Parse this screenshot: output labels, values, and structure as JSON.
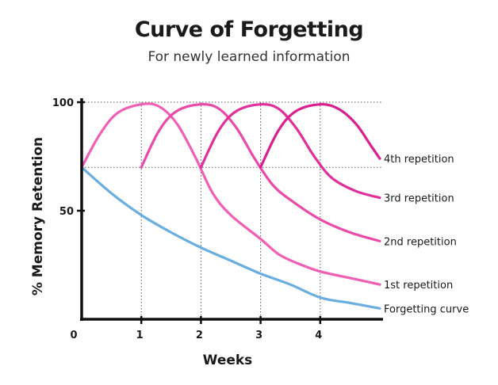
{
  "chart_data": {
    "type": "line",
    "title": "Curve of Forgetting",
    "subtitle": "For newly learned information",
    "xlabel": "Weeks",
    "ylabel": "% Memory Retention",
    "xlim": [
      0,
      5
    ],
    "ylim": [
      0,
      100
    ],
    "x_ticks": [
      "0",
      "1",
      "2",
      "3",
      "4"
    ],
    "y_ticks": [
      "50",
      "100"
    ],
    "reference_lines": [
      70,
      100
    ],
    "series": [
      {
        "name": "Forgetting curve",
        "color": "#6aaee0",
        "points": [
          [
            0,
            70
          ],
          [
            0.5,
            58
          ],
          [
            1,
            48
          ],
          [
            1.5,
            40
          ],
          [
            2,
            33
          ],
          [
            2.5,
            27
          ],
          [
            3,
            21
          ],
          [
            3.5,
            16
          ],
          [
            4,
            10
          ],
          [
            4.5,
            7.5
          ],
          [
            5,
            5
          ]
        ]
      },
      {
        "name": "1st repetition",
        "color": "#f05fb4",
        "points": [
          [
            0,
            70
          ],
          [
            0.3,
            85
          ],
          [
            0.6,
            95
          ],
          [
            1,
            99
          ],
          [
            1.3,
            98
          ],
          [
            1.6,
            90
          ],
          [
            1.9,
            75
          ],
          [
            2.2,
            58
          ],
          [
            2.5,
            48
          ],
          [
            3,
            37
          ],
          [
            3.3,
            30
          ],
          [
            3.6,
            26
          ],
          [
            4,
            22
          ],
          [
            4.5,
            19
          ],
          [
            5,
            16
          ]
        ]
      },
      {
        "name": "2nd repetition",
        "color": "#ea4aa8",
        "points": [
          [
            1,
            70
          ],
          [
            1.3,
            87
          ],
          [
            1.6,
            96
          ],
          [
            2,
            99
          ],
          [
            2.3,
            97
          ],
          [
            2.6,
            88
          ],
          [
            2.9,
            74
          ],
          [
            3.2,
            62
          ],
          [
            3.5,
            55
          ],
          [
            4,
            46
          ],
          [
            4.5,
            40
          ],
          [
            5,
            36
          ]
        ]
      },
      {
        "name": "3rd repetition",
        "color": "#e0309a",
        "points": [
          [
            2,
            70
          ],
          [
            2.3,
            87
          ],
          [
            2.6,
            96
          ],
          [
            3,
            99
          ],
          [
            3.3,
            97
          ],
          [
            3.6,
            88
          ],
          [
            3.9,
            75
          ],
          [
            4.2,
            65
          ],
          [
            4.6,
            59
          ],
          [
            5,
            56
          ]
        ]
      },
      {
        "name": "4th repetition",
        "color": "#d9208e",
        "points": [
          [
            3,
            70
          ],
          [
            3.3,
            87
          ],
          [
            3.6,
            96
          ],
          [
            4,
            99
          ],
          [
            4.3,
            97
          ],
          [
            4.6,
            90
          ],
          [
            4.85,
            80
          ],
          [
            5,
            74
          ]
        ]
      }
    ]
  }
}
